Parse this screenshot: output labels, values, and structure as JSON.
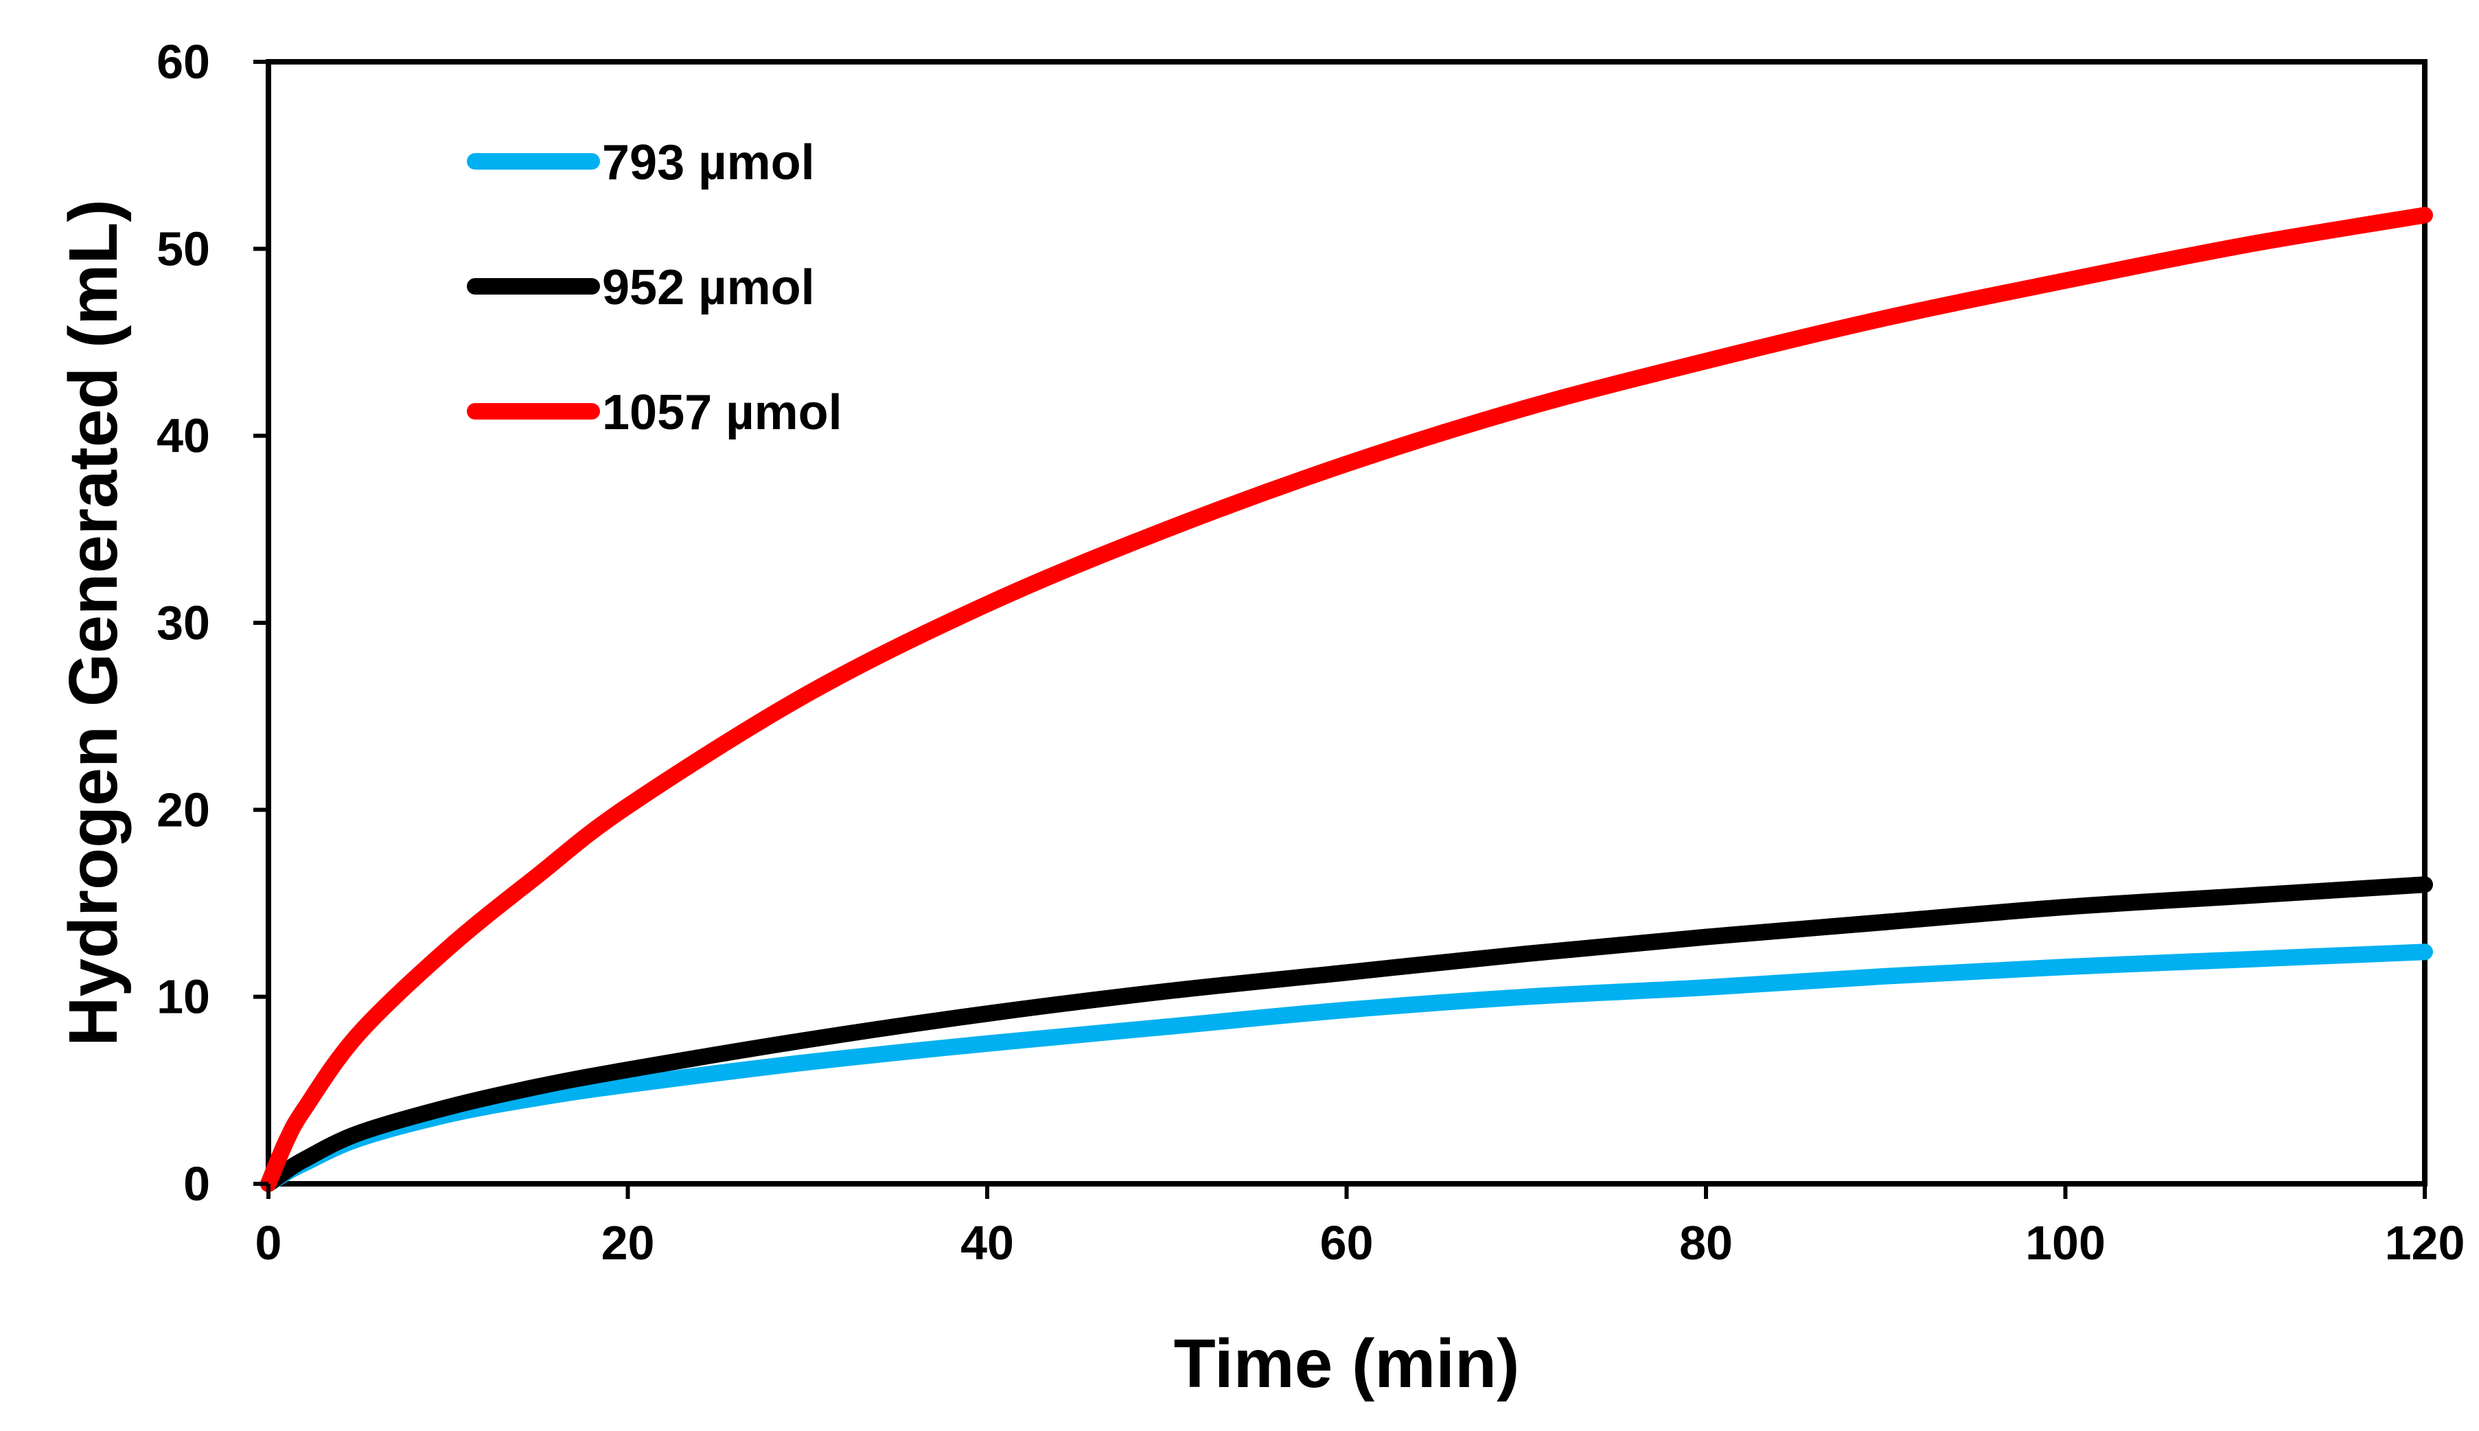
{
  "chart_data": {
    "type": "line",
    "title": "",
    "xlabel": "Time (min)",
    "ylabel": "Hydrogen Generated (mL)",
    "xlim": [
      0,
      120
    ],
    "ylim": [
      0,
      60
    ],
    "xticks": [
      "0",
      "20",
      "40",
      "60",
      "80",
      "100",
      "120"
    ],
    "yticks": [
      "0",
      "10",
      "20",
      "30",
      "40",
      "50",
      "60"
    ],
    "grid": false,
    "legend_position": "top-left",
    "x": [
      0,
      1,
      2,
      5,
      10,
      15,
      20,
      30,
      40,
      50,
      60,
      70,
      80,
      90,
      100,
      110,
      120
    ],
    "series": [
      {
        "name": "793 µmol",
        "color": "#00b0f0",
        "values": [
          0,
          0.6,
          1.1,
          2.4,
          3.7,
          4.6,
          5.3,
          6.5,
          7.5,
          8.4,
          9.3,
          10.0,
          10.5,
          11.1,
          11.6,
          12.0,
          12.4
        ]
      },
      {
        "name": "952 µmol",
        "color": "#000000",
        "values": [
          0,
          0.7,
          1.3,
          2.7,
          4.1,
          5.2,
          6.1,
          7.7,
          9.1,
          10.3,
          11.3,
          12.3,
          13.2,
          14.0,
          14.8,
          15.4,
          16.0
        ]
      },
      {
        "name": "1057 µmol",
        "color": "#ff0000",
        "values": [
          0,
          2.3,
          4.0,
          8.0,
          12.6,
          16.5,
          20.2,
          26.2,
          31.0,
          35.0,
          38.5,
          41.5,
          44.0,
          46.3,
          48.3,
          50.2,
          51.8
        ]
      }
    ]
  }
}
